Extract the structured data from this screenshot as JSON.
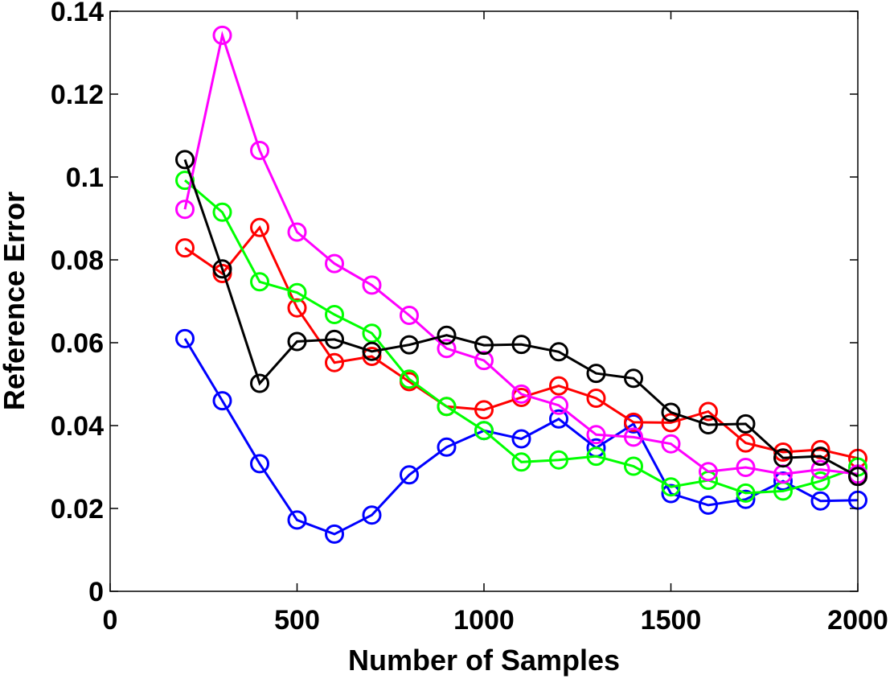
{
  "chart_data": {
    "type": "line",
    "title": "",
    "xlabel": "Number of Samples",
    "ylabel": "Reference Error",
    "xlim": [
      0,
      2000
    ],
    "ylim": [
      0,
      0.14
    ],
    "xticks": [
      0,
      500,
      1000,
      1500,
      2000
    ],
    "xtick_labels": [
      "0",
      "500",
      "1000",
      "1500",
      "2000"
    ],
    "yticks": [
      0,
      0.02,
      0.04,
      0.06,
      0.08,
      0.1,
      0.12,
      0.14
    ],
    "ytick_labels": [
      "0",
      "0.02",
      "0.04",
      "0.06",
      "0.08",
      "0.1",
      "0.12",
      "0.14"
    ],
    "grid": false,
    "marker": "circle",
    "x": [
      200,
      300,
      400,
      500,
      600,
      700,
      800,
      900,
      1000,
      1100,
      1200,
      1300,
      1400,
      1500,
      1600,
      1700,
      1800,
      1900,
      2000
    ],
    "series": [
      {
        "name": "blue",
        "color": "#0000ff",
        "values": [
          0.061,
          0.046,
          0.0308,
          0.0172,
          0.0138,
          0.0184,
          0.0281,
          0.0348,
          0.0388,
          0.0368,
          0.0416,
          0.0346,
          0.0404,
          0.0236,
          0.0208,
          0.0222,
          0.0266,
          0.0218,
          0.022
        ]
      },
      {
        "name": "red",
        "color": "#ff0000",
        "values": [
          0.0829,
          0.0767,
          0.0878,
          0.0684,
          0.0552,
          0.0567,
          0.0506,
          0.0446,
          0.0438,
          0.0468,
          0.0496,
          0.0466,
          0.0408,
          0.0407,
          0.0434,
          0.0358,
          0.0336,
          0.0342,
          0.0321
        ]
      },
      {
        "name": "green",
        "color": "#00ff00",
        "values": [
          0.0992,
          0.0915,
          0.0747,
          0.0721,
          0.0668,
          0.0623,
          0.0512,
          0.0446,
          0.0388,
          0.0312,
          0.0317,
          0.0326,
          0.0302,
          0.0252,
          0.0268,
          0.0237,
          0.0242,
          0.0266,
          0.03
        ]
      },
      {
        "name": "magenta",
        "color": "#ff00ff",
        "values": [
          0.0922,
          0.1342,
          0.1064,
          0.0867,
          0.0791,
          0.0739,
          0.0666,
          0.0586,
          0.0557,
          0.0476,
          0.0449,
          0.0378,
          0.0372,
          0.0356,
          0.0289,
          0.0299,
          0.0283,
          0.0294,
          0.0283
        ]
      },
      {
        "name": "black",
        "color": "#000000",
        "values": [
          0.1042,
          0.0778,
          0.0502,
          0.0603,
          0.0608,
          0.0579,
          0.0595,
          0.0618,
          0.0594,
          0.0596,
          0.0578,
          0.0526,
          0.0514,
          0.0432,
          0.0402,
          0.0404,
          0.0322,
          0.0326,
          0.0277
        ]
      }
    ]
  }
}
